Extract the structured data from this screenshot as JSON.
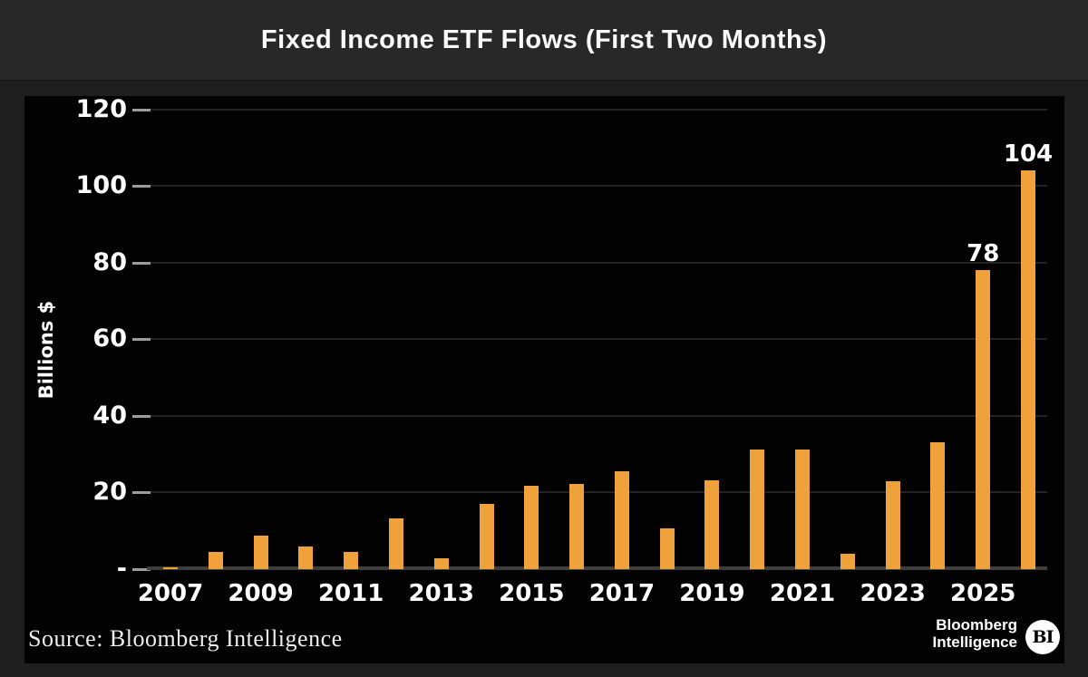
{
  "header": {
    "title": "Fixed Income ETF Flows (First Two Months)"
  },
  "chart_data": {
    "type": "bar",
    "title": "Fixed Income ETF Flows (First Two Months)",
    "ylabel": "Billions $",
    "xlabel": "",
    "ylim": [
      0,
      120
    ],
    "grid": "faint horizontal gridlines every 20, dark background",
    "legend": "none",
    "bar_color": "#efa23c",
    "background_color": "#020202",
    "ytick_values": [
      0,
      20,
      40,
      60,
      80,
      100,
      120
    ],
    "ytick_labels": [
      "-",
      "20",
      "40",
      "60",
      "80",
      "100",
      "120"
    ],
    "years": [
      2007,
      2008,
      2009,
      2010,
      2011,
      2012,
      2013,
      2014,
      2015,
      2016,
      2017,
      2018,
      2019,
      2020,
      2021,
      2022,
      2023,
      2024,
      2025,
      2026
    ],
    "values": [
      0.4,
      4.5,
      8.7,
      5.9,
      4.5,
      13.2,
      2.8,
      17,
      21.7,
      22.3,
      25.5,
      10.6,
      23.2,
      31.2,
      31.2,
      4,
      23,
      33,
      78,
      104
    ],
    "xtick_years": [
      2007,
      2009,
      2011,
      2013,
      2015,
      2017,
      2019,
      2021,
      2023,
      2025
    ],
    "data_labels": {
      "2025": "78",
      "2026": "104"
    }
  },
  "footer": {
    "source": "Source: Bloomberg Intelligence",
    "logo": {
      "line1": "Bloomberg",
      "line2": "Intelligence",
      "badge": "BI"
    }
  }
}
